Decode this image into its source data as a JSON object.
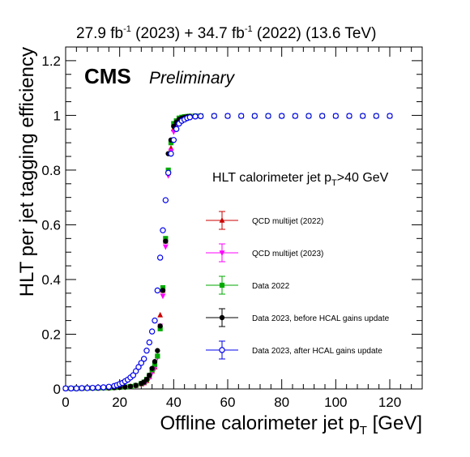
{
  "header": {
    "lumi_2023": "27.9 fb",
    "lumi_2023_sup": "-1",
    "lumi_2023_year": " (2023) + ",
    "lumi_2022": "34.7 fb",
    "lumi_2022_sup": "-1",
    "lumi_2022_rest": " (2022) (13.6 TeV)"
  },
  "label": {
    "cms": "CMS",
    "preliminary": "Preliminary"
  },
  "annotation": {
    "pre": "HLT calorimeter jet p",
    "sub": "T",
    "post": ">40 GeV"
  },
  "chart_data": {
    "type": "scatter",
    "xlabel": "Offline calorimeter jet p",
    "xlabel_sub": "T",
    "xlabel_unit": " [GeV]",
    "ylabel": "HLT per jet tagging efficiency",
    "xlim": [
      0,
      132
    ],
    "ylim": [
      0,
      1.25
    ],
    "x_ticks": [
      0,
      20,
      40,
      60,
      80,
      100,
      120
    ],
    "y_ticks": [
      0,
      0.2,
      0.4,
      0.6,
      0.8,
      1,
      1.2
    ],
    "y_tick_labels": [
      "0",
      "0.2",
      "0.4",
      "0.6",
      "0.8",
      "1",
      "1.2"
    ],
    "series": [
      {
        "name": "QCD multijet (2022)",
        "color": "#cc0000",
        "marker": "triangle-up",
        "x": [
          0,
          2,
          4,
          6,
          8,
          10,
          12,
          14,
          16,
          18,
          20,
          22,
          24,
          26,
          28,
          29,
          30,
          31,
          32,
          33,
          34,
          35,
          36,
          37,
          38,
          39,
          40,
          41,
          42,
          43,
          44,
          45,
          46,
          48,
          50,
          55,
          60,
          65,
          70,
          75,
          80,
          85,
          90,
          95,
          100,
          105,
          110,
          115,
          120
        ],
        "y": [
          0.002,
          0.002,
          0.002,
          0.002,
          0.003,
          0.003,
          0.003,
          0.004,
          0.004,
          0.005,
          0.006,
          0.007,
          0.009,
          0.012,
          0.018,
          0.022,
          0.03,
          0.045,
          0.065,
          0.08,
          0.12,
          0.27,
          0.36,
          0.54,
          0.79,
          0.88,
          0.95,
          0.97,
          0.98,
          0.99,
          0.993,
          0.995,
          0.996,
          0.997,
          0.998,
          0.998,
          0.998,
          0.998,
          0.998,
          0.998,
          0.998,
          0.998,
          0.998,
          0.998,
          0.998,
          0.998,
          0.998,
          0.998,
          0.998
        ]
      },
      {
        "name": "QCD multijet (2023)",
        "color": "#ff00ff",
        "marker": "triangle-down",
        "x": [
          0,
          2,
          4,
          6,
          8,
          10,
          12,
          14,
          16,
          18,
          20,
          22,
          24,
          26,
          28,
          29,
          30,
          31,
          32,
          33,
          34,
          35,
          36,
          37,
          38,
          39,
          40,
          41,
          42,
          43,
          44,
          45,
          46,
          48,
          50,
          55,
          60,
          65,
          70,
          75,
          80,
          85,
          90,
          95,
          100,
          105,
          110,
          115,
          120
        ],
        "y": [
          0.002,
          0.002,
          0.002,
          0.002,
          0.003,
          0.003,
          0.003,
          0.004,
          0.004,
          0.005,
          0.006,
          0.007,
          0.009,
          0.012,
          0.017,
          0.021,
          0.028,
          0.04,
          0.06,
          0.075,
          0.115,
          0.23,
          0.34,
          0.52,
          0.78,
          0.87,
          0.94,
          0.965,
          0.978,
          0.988,
          0.992,
          0.994,
          0.996,
          0.997,
          0.998,
          0.998,
          0.998,
          0.998,
          0.998,
          0.998,
          0.998,
          0.998,
          0.998,
          0.998,
          0.998,
          0.998,
          0.998,
          0.998,
          0.998
        ]
      },
      {
        "name": "Data 2022",
        "color": "#00aa00",
        "marker": "square",
        "x": [
          0,
          2,
          4,
          6,
          8,
          10,
          12,
          14,
          16,
          18,
          20,
          22,
          24,
          26,
          28,
          29,
          30,
          31,
          32,
          33,
          34,
          35,
          36,
          37,
          38,
          39,
          40,
          41,
          42,
          43,
          44,
          45,
          46,
          48,
          50,
          55,
          60,
          65,
          70,
          75,
          80,
          85,
          90,
          95,
          100,
          105,
          110,
          115,
          120
        ],
        "y": [
          0.002,
          0.002,
          0.002,
          0.002,
          0.003,
          0.003,
          0.003,
          0.004,
          0.004,
          0.005,
          0.006,
          0.007,
          0.009,
          0.013,
          0.02,
          0.025,
          0.035,
          0.05,
          0.07,
          0.09,
          0.12,
          0.22,
          0.37,
          0.55,
          0.8,
          0.9,
          0.97,
          0.98,
          0.99,
          0.993,
          0.995,
          0.996,
          0.997,
          0.998,
          0.998,
          0.998,
          0.998,
          0.998,
          0.998,
          0.998,
          0.998,
          0.998,
          0.998,
          0.998,
          0.998,
          0.998,
          0.998,
          0.998,
          0.998
        ]
      },
      {
        "name": "Data 2023, before HCAL gains update",
        "color": "#000000",
        "marker": "circle",
        "x": [
          0,
          2,
          4,
          6,
          8,
          10,
          12,
          14,
          16,
          18,
          20,
          22,
          24,
          26,
          28,
          29,
          30,
          31,
          32,
          33,
          34,
          35,
          36,
          37,
          38,
          39,
          40,
          41,
          42,
          43,
          44,
          45,
          46,
          48,
          50,
          55,
          60,
          65,
          70,
          75,
          80,
          85,
          90,
          95,
          100,
          105,
          110,
          115,
          120
        ],
        "y": [
          0.002,
          0.002,
          0.002,
          0.002,
          0.003,
          0.003,
          0.003,
          0.004,
          0.004,
          0.005,
          0.006,
          0.007,
          0.009,
          0.013,
          0.02,
          0.025,
          0.035,
          0.05,
          0.075,
          0.1,
          0.14,
          0.23,
          0.36,
          0.54,
          0.86,
          0.91,
          0.96,
          0.975,
          0.985,
          0.99,
          0.993,
          0.995,
          0.996,
          0.997,
          0.998,
          0.998,
          0.998,
          0.998,
          0.998,
          0.998,
          0.998,
          0.998,
          0.998,
          0.998,
          0.998,
          0.998,
          0.998,
          0.998,
          0.998
        ]
      },
      {
        "name": "Data 2023, after HCAL gains update",
        "color": "#0000ee",
        "marker": "open-circle",
        "x": [
          0,
          2,
          4,
          6,
          8,
          10,
          12,
          14,
          16,
          18,
          19,
          20,
          21,
          22,
          23,
          24,
          25,
          26,
          27,
          28,
          29,
          30,
          31,
          32,
          33,
          34,
          35,
          36,
          37,
          38,
          39,
          40,
          41,
          42,
          43,
          44,
          45,
          46,
          48,
          50,
          55,
          60,
          65,
          70,
          75,
          80,
          85,
          90,
          95,
          100,
          105,
          110,
          115,
          120
        ],
        "y": [
          0.002,
          0.002,
          0.002,
          0.003,
          0.003,
          0.004,
          0.005,
          0.006,
          0.008,
          0.011,
          0.014,
          0.018,
          0.022,
          0.028,
          0.034,
          0.042,
          0.05,
          0.065,
          0.08,
          0.095,
          0.11,
          0.14,
          0.17,
          0.21,
          0.25,
          0.36,
          0.48,
          0.58,
          0.69,
          0.79,
          0.86,
          0.91,
          0.95,
          0.97,
          0.98,
          0.985,
          0.99,
          0.993,
          0.996,
          0.997,
          0.998,
          0.998,
          0.998,
          0.998,
          0.998,
          0.998,
          0.998,
          0.998,
          0.998,
          0.998,
          0.998,
          0.998,
          0.998,
          0.998
        ]
      }
    ]
  }
}
